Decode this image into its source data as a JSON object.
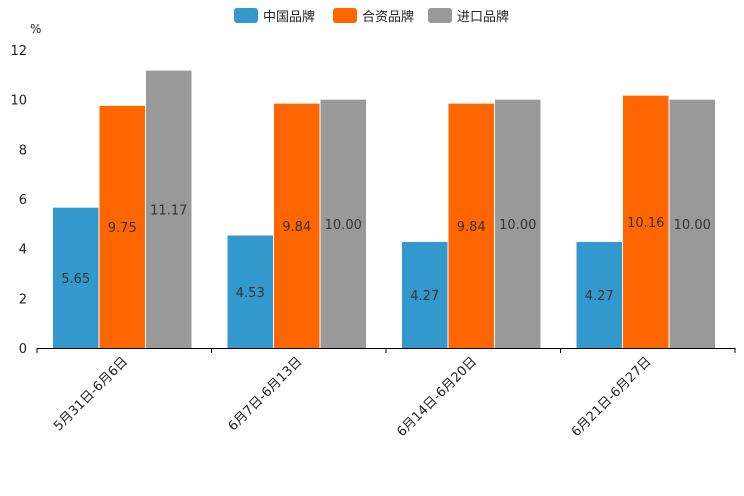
{
  "chart_data": {
    "type": "bar",
    "title": "",
    "ylabel": "%",
    "xlabel": "",
    "ylim": [
      0,
      12
    ],
    "yticks": [
      0,
      2,
      4,
      6,
      8,
      10,
      12
    ],
    "grid": false,
    "legend_position": "top-center",
    "categories": [
      "5月31日-6月6日",
      "6月7日-6月13日",
      "6月14日-6月20日",
      "6月21日-6月27日"
    ],
    "series": [
      {
        "name": "中国品牌",
        "color": "#3399CC",
        "values": [
          5.65,
          4.53,
          4.27,
          4.27
        ],
        "labels": [
          "5.65",
          "4.53",
          "4.27",
          "4.27"
        ]
      },
      {
        "name": "合资品牌",
        "color": "#FF6600",
        "values": [
          9.75,
          9.84,
          9.84,
          10.16
        ],
        "labels": [
          "9.75",
          "9.84",
          "9.84",
          "10.16"
        ]
      },
      {
        "name": "进口品牌",
        "color": "#999999",
        "values": [
          11.17,
          10.0,
          10.0,
          10.0
        ],
        "labels": [
          "11.17",
          "10.00",
          "10.00",
          "10.00"
        ]
      }
    ]
  }
}
